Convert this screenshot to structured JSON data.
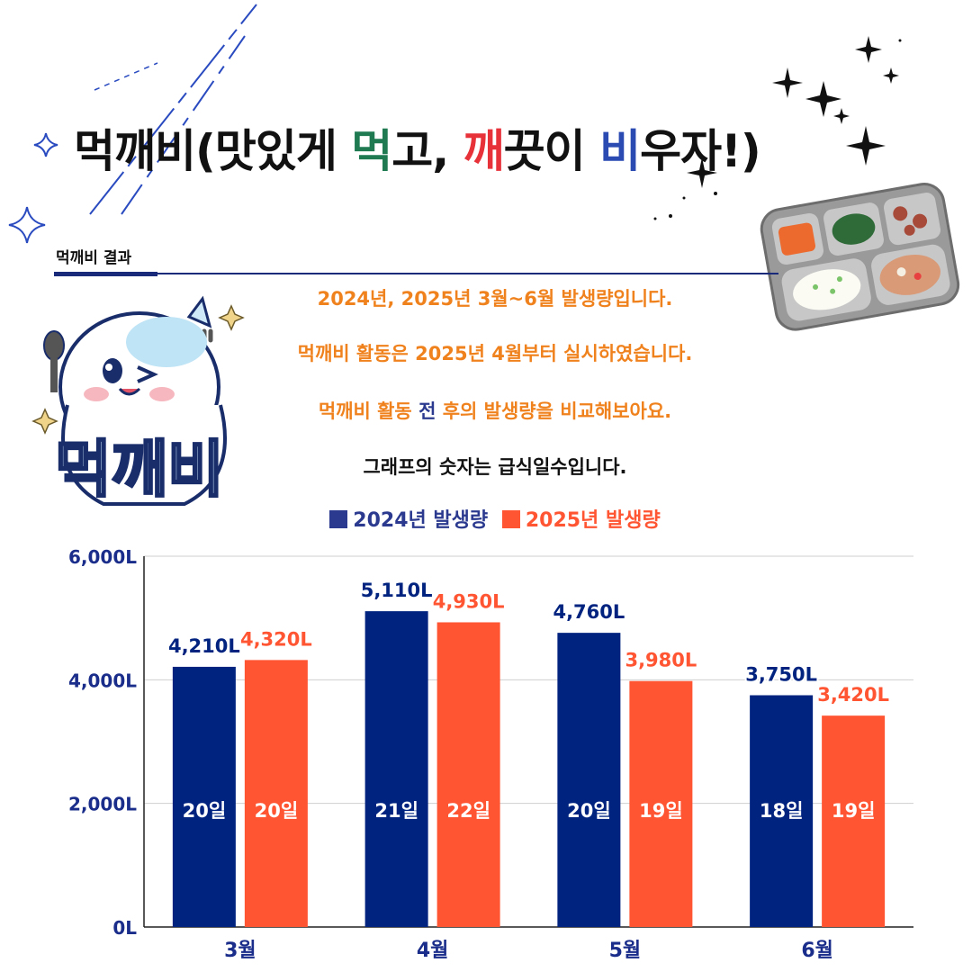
{
  "title": {
    "part1": "먹깨비(맛있게 ",
    "part2": "먹",
    "part3": "고, ",
    "part4": "깨",
    "part5": "끗이 ",
    "part6": "비",
    "part7": "우자!)"
  },
  "section_label": "먹깨비 결과",
  "descriptions": {
    "line1": "2024년, 2025년 3월~6월 발생량입니다.",
    "line2": "먹깨비 활동은 2025년 4월부터 실시하였습니다.",
    "line3_a": "먹깨비 활동 ",
    "line3_b": "전",
    "line3_c": " 후의 발생량을 비교해보아요.",
    "line4": "그래프의 숫자는 급식일수입니다."
  },
  "mascot_text": "먹깨비",
  "colors": {
    "series2024": "#002380",
    "series2025": "#ff5533",
    "accent_orange": "#f0821e",
    "navy": "#2b3a8f"
  },
  "chart_data": {
    "type": "bar",
    "categories": [
      "3월",
      "4월",
      "5월",
      "6월"
    ],
    "series": [
      {
        "name": "2024년 발생량",
        "values": [
          4210,
          5110,
          4760,
          3750
        ],
        "labels": [
          "4,210L",
          "5,110L",
          "4,760L",
          "3,750L"
        ],
        "days": [
          "20일",
          "21일",
          "20일",
          "18일"
        ]
      },
      {
        "name": "2025년 발생량",
        "values": [
          4320,
          4930,
          3980,
          3420
        ],
        "labels": [
          "4,320L",
          "4,930L",
          "3,980L",
          "3,420L"
        ],
        "days": [
          "20일",
          "22일",
          "19일",
          "19일"
        ]
      }
    ],
    "yticks": [
      {
        "value": 0,
        "label": "0L"
      },
      {
        "value": 2000,
        "label": "2,000L"
      },
      {
        "value": 4000,
        "label": "4,000L"
      },
      {
        "value": 6000,
        "label": "6,000L"
      }
    ],
    "ylim": [
      0,
      6000
    ],
    "grid": true,
    "legend": "top"
  }
}
